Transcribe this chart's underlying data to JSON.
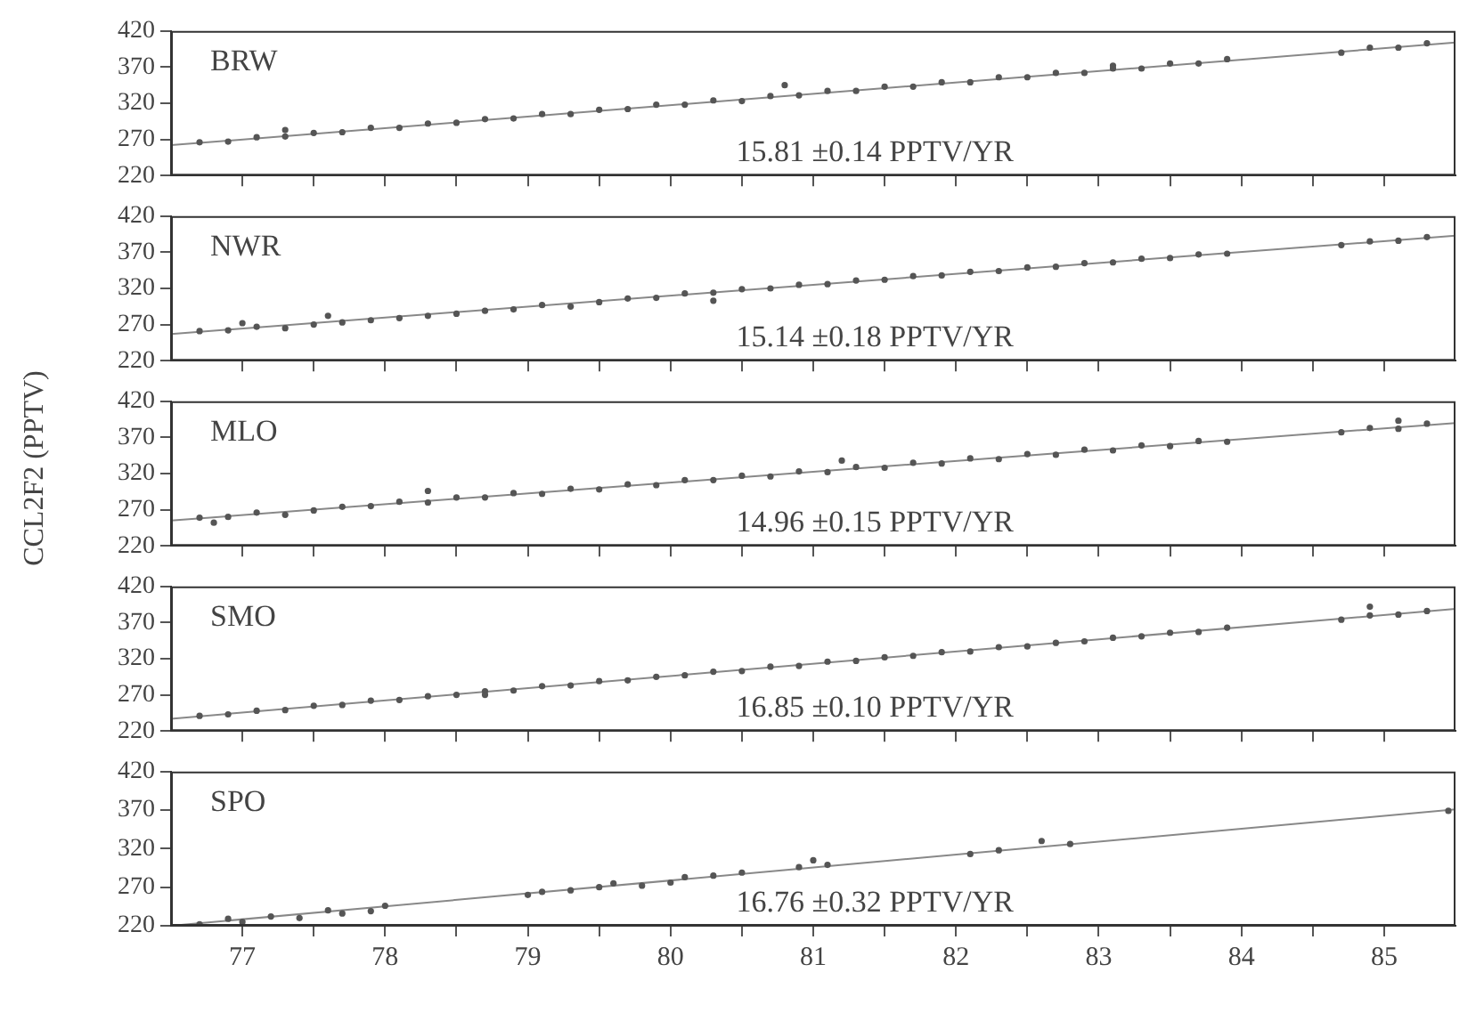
{
  "chart_data": [
    {
      "type": "scatter",
      "grid": false,
      "legend": false,
      "tick_labels": "y",
      "annotations": [
        "BRW",
        "15.81 ±0.14 PPTV/YR"
      ],
      "xlim": [
        77,
        86
      ],
      "xticks": [
        {
          "value": 77.5,
          "label": null
        },
        {
          "value": 78,
          "label": null
        },
        {
          "value": 78.5,
          "label": null
        },
        {
          "value": 79,
          "label": null
        },
        {
          "value": 79.5,
          "label": null
        },
        {
          "value": 80,
          "label": null
        },
        {
          "value": 80.5,
          "label": null
        },
        {
          "value": 81,
          "label": null
        },
        {
          "value": 81.5,
          "label": null
        },
        {
          "value": 82,
          "label": null
        },
        {
          "value": 82.5,
          "label": null
        },
        {
          "value": 83,
          "label": null
        },
        {
          "value": 83.5,
          "label": null
        },
        {
          "value": 84,
          "label": null
        },
        {
          "value": 84.5,
          "label": null
        },
        {
          "value": 85,
          "label": null
        },
        {
          "value": 85.5,
          "label": null
        }
      ],
      "ylim": [
        220,
        420
      ],
      "yticks": [
        220,
        270,
        320,
        370,
        420
      ],
      "series": [
        {
          "marker": "circle",
          "color": "#555555",
          "x": [
            77.2,
            77.4,
            77.6,
            77.8,
            78.0,
            78.2,
            78.4,
            78.6,
            78.8,
            79.0,
            79.2,
            79.4,
            79.6,
            79.8,
            80.0,
            80.2,
            80.4,
            80.6,
            80.8,
            81.0,
            81.2,
            81.4,
            81.6,
            81.8,
            82.0,
            82.2,
            82.4,
            82.6,
            82.8,
            83.0,
            83.2,
            83.4,
            83.6,
            83.8,
            84.0,
            84.2,
            84.4,
            85.2,
            85.4,
            85.6,
            85.8,
            77.8,
            81.3,
            83.6
          ],
          "values": [
            266,
            267,
            273,
            274,
            279,
            280,
            286,
            286,
            292,
            293,
            298,
            299,
            305,
            305,
            311,
            312,
            318,
            318,
            324,
            323,
            330,
            331,
            337,
            337,
            343,
            343,
            349,
            349,
            356,
            356,
            362,
            362,
            368,
            368,
            375,
            375,
            381,
            390,
            397,
            397,
            403,
            283,
            345,
            372
          ]
        },
        {
          "type": "line",
          "color": "#888888",
          "x": [
            77,
            86
          ],
          "values": [
            262,
            404
          ]
        }
      ]
    },
    {
      "type": "scatter",
      "grid": false,
      "legend": false,
      "tick_labels": "y",
      "annotations": [
        "NWR",
        "15.14 ±0.18 PPTV/YR"
      ],
      "xlim": [
        77,
        86
      ],
      "xticks": [
        {
          "value": 77.5,
          "label": null
        },
        {
          "value": 78,
          "label": null
        },
        {
          "value": 78.5,
          "label": null
        },
        {
          "value": 79,
          "label": null
        },
        {
          "value": 79.5,
          "label": null
        },
        {
          "value": 80,
          "label": null
        },
        {
          "value": 80.5,
          "label": null
        },
        {
          "value": 81,
          "label": null
        },
        {
          "value": 81.5,
          "label": null
        },
        {
          "value": 82,
          "label": null
        },
        {
          "value": 82.5,
          "label": null
        },
        {
          "value": 83,
          "label": null
        },
        {
          "value": 83.5,
          "label": null
        },
        {
          "value": 84,
          "label": null
        },
        {
          "value": 84.5,
          "label": null
        },
        {
          "value": 85,
          "label": null
        },
        {
          "value": 85.5,
          "label": null
        }
      ],
      "ylim": [
        220,
        420
      ],
      "yticks": [
        220,
        270,
        320,
        370,
        420
      ],
      "series": [
        {
          "marker": "circle",
          "color": "#555555",
          "x": [
            77.2,
            77.4,
            77.6,
            77.8,
            78.0,
            78.2,
            78.4,
            78.6,
            78.8,
            79.0,
            79.2,
            79.4,
            79.6,
            79.8,
            80.0,
            80.2,
            80.4,
            80.6,
            80.8,
            81.0,
            81.2,
            81.4,
            81.6,
            81.8,
            82.0,
            82.2,
            82.4,
            82.6,
            82.8,
            83.0,
            83.2,
            83.4,
            83.6,
            83.8,
            84.0,
            84.2,
            84.4,
            85.2,
            85.4,
            85.6,
            85.8,
            77.5,
            78.1,
            80.8
          ],
          "values": [
            261,
            262,
            267,
            265,
            270,
            273,
            276,
            279,
            282,
            285,
            289,
            291,
            297,
            295,
            301,
            306,
            307,
            313,
            314,
            319,
            320,
            325,
            326,
            331,
            332,
            337,
            338,
            343,
            344,
            349,
            350,
            355,
            356,
            361,
            362,
            367,
            368,
            380,
            385,
            386,
            391,
            272,
            282,
            303
          ]
        },
        {
          "type": "line",
          "color": "#888888",
          "x": [
            77,
            86
          ],
          "values": [
            257,
            393
          ]
        }
      ]
    },
    {
      "type": "scatter",
      "grid": false,
      "legend": false,
      "tick_labels": "y",
      "ylabel": "CCL2F2 (PPTV)",
      "annotations": [
        "MLO",
        "14.96 ±0.15 PPTV/YR"
      ],
      "xlim": [
        77,
        86
      ],
      "xticks": [
        {
          "value": 77.5,
          "label": null
        },
        {
          "value": 78,
          "label": null
        },
        {
          "value": 78.5,
          "label": null
        },
        {
          "value": 79,
          "label": null
        },
        {
          "value": 79.5,
          "label": null
        },
        {
          "value": 80,
          "label": null
        },
        {
          "value": 80.5,
          "label": null
        },
        {
          "value": 81,
          "label": null
        },
        {
          "value": 81.5,
          "label": null
        },
        {
          "value": 82,
          "label": null
        },
        {
          "value": 82.5,
          "label": null
        },
        {
          "value": 83,
          "label": null
        },
        {
          "value": 83.5,
          "label": null
        },
        {
          "value": 84,
          "label": null
        },
        {
          "value": 84.5,
          "label": null
        },
        {
          "value": 85,
          "label": null
        },
        {
          "value": 85.5,
          "label": null
        }
      ],
      "ylim": [
        220,
        420
      ],
      "yticks": [
        220,
        270,
        320,
        370,
        420
      ],
      "series": [
        {
          "marker": "circle",
          "color": "#555555",
          "x": [
            77.2,
            77.4,
            77.6,
            77.8,
            78.0,
            78.2,
            78.4,
            78.6,
            78.8,
            79.0,
            79.2,
            79.4,
            79.6,
            79.8,
            80.0,
            80.2,
            80.4,
            80.6,
            80.8,
            81.0,
            81.2,
            81.4,
            81.6,
            81.8,
            82.0,
            82.2,
            82.4,
            82.6,
            82.8,
            83.0,
            83.2,
            83.4,
            83.6,
            83.8,
            84.0,
            84.2,
            84.4,
            85.2,
            85.4,
            85.6,
            85.8,
            77.3,
            78.8,
            81.7,
            85.6
          ],
          "values": [
            259,
            260,
            266,
            263,
            269,
            274,
            275,
            281,
            280,
            287,
            287,
            293,
            292,
            299,
            298,
            305,
            304,
            311,
            311,
            317,
            316,
            323,
            322,
            329,
            328,
            335,
            334,
            341,
            340,
            347,
            346,
            353,
            352,
            359,
            358,
            365,
            364,
            377,
            383,
            382,
            389,
            252,
            296,
            338,
            393
          ]
        },
        {
          "type": "line",
          "color": "#888888",
          "x": [
            77,
            86
          ],
          "values": [
            255,
            390
          ]
        }
      ]
    },
    {
      "type": "scatter",
      "grid": false,
      "legend": false,
      "tick_labels": "y",
      "annotations": [
        "SMO",
        "16.85 ±0.10 PPTV/YR"
      ],
      "xlim": [
        77,
        86
      ],
      "xticks": [
        {
          "value": 77.5,
          "label": null
        },
        {
          "value": 78,
          "label": null
        },
        {
          "value": 78.5,
          "label": null
        },
        {
          "value": 79,
          "label": null
        },
        {
          "value": 79.5,
          "label": null
        },
        {
          "value": 80,
          "label": null
        },
        {
          "value": 80.5,
          "label": null
        },
        {
          "value": 81,
          "label": null
        },
        {
          "value": 81.5,
          "label": null
        },
        {
          "value": 82,
          "label": null
        },
        {
          "value": 82.5,
          "label": null
        },
        {
          "value": 83,
          "label": null
        },
        {
          "value": 83.5,
          "label": null
        },
        {
          "value": 84,
          "label": null
        },
        {
          "value": 84.5,
          "label": null
        },
        {
          "value": 85,
          "label": null
        },
        {
          "value": 85.5,
          "label": null
        }
      ],
      "ylim": [
        220,
        420
      ],
      "yticks": [
        220,
        270,
        320,
        370,
        420
      ],
      "series": [
        {
          "marker": "circle",
          "color": "#555555",
          "x": [
            77.2,
            77.4,
            77.6,
            77.8,
            78.0,
            78.2,
            78.4,
            78.6,
            78.8,
            79.0,
            79.2,
            79.4,
            79.6,
            79.8,
            80.0,
            80.2,
            80.4,
            80.6,
            80.8,
            81.0,
            81.2,
            81.4,
            81.6,
            81.8,
            82.0,
            82.2,
            82.4,
            82.6,
            82.8,
            83.0,
            83.2,
            83.4,
            83.6,
            83.8,
            84.0,
            84.2,
            84.4,
            85.2,
            85.4,
            85.6,
            85.8,
            79.2,
            85.4
          ],
          "values": [
            241,
            243,
            248,
            249,
            255,
            256,
            262,
            263,
            268,
            270,
            275,
            276,
            282,
            283,
            289,
            290,
            295,
            297,
            302,
            303,
            309,
            310,
            316,
            317,
            322,
            324,
            329,
            330,
            336,
            337,
            342,
            344,
            349,
            351,
            356,
            357,
            363,
            374,
            380,
            381,
            386,
            270,
            392
          ]
        },
        {
          "type": "line",
          "color": "#888888",
          "x": [
            77,
            86
          ],
          "values": [
            237,
            389
          ]
        }
      ]
    },
    {
      "type": "scatter",
      "grid": false,
      "legend": false,
      "annotations": [
        "SPO",
        "16.76 ±0.32 PPTV/YR"
      ],
      "xlim": [
        77,
        86
      ],
      "xticks": [
        {
          "value": 77.5,
          "label": "77"
        },
        {
          "value": 78,
          "label": null
        },
        {
          "value": 78.5,
          "label": "78"
        },
        {
          "value": 79,
          "label": null
        },
        {
          "value": 79.5,
          "label": "79"
        },
        {
          "value": 80,
          "label": null
        },
        {
          "value": 80.5,
          "label": "80"
        },
        {
          "value": 81,
          "label": null
        },
        {
          "value": 81.5,
          "label": "81"
        },
        {
          "value": 82,
          "label": null
        },
        {
          "value": 82.5,
          "label": "82"
        },
        {
          "value": 83,
          "label": null
        },
        {
          "value": 83.5,
          "label": "83"
        },
        {
          "value": 84,
          "label": null
        },
        {
          "value": 84.5,
          "label": "84"
        },
        {
          "value": 85,
          "label": null
        },
        {
          "value": 85.5,
          "label": "85"
        }
      ],
      "ylim": [
        220,
        420
      ],
      "yticks": [
        220,
        270,
        320,
        370,
        420
      ],
      "series": [
        {
          "marker": "circle",
          "color": "#555555",
          "x": [
            77.2,
            77.4,
            77.5,
            77.7,
            77.9,
            78.1,
            78.2,
            78.4,
            78.5,
            79.5,
            79.6,
            79.8,
            80.0,
            80.1,
            80.3,
            80.5,
            80.6,
            80.8,
            81.0,
            81.4,
            81.5,
            81.6,
            82.6,
            82.8,
            83.1,
            83.3,
            85.95
          ],
          "values": [
            222,
            229,
            225,
            232,
            230,
            240,
            236,
            239,
            246,
            260,
            264,
            266,
            270,
            275,
            272,
            276,
            283,
            285,
            289,
            296,
            305,
            299,
            313,
            318,
            330,
            326,
            369
          ]
        },
        {
          "type": "line",
          "color": "#888888",
          "x": [
            77,
            86
          ],
          "values": [
            220,
            371
          ]
        }
      ]
    }
  ]
}
